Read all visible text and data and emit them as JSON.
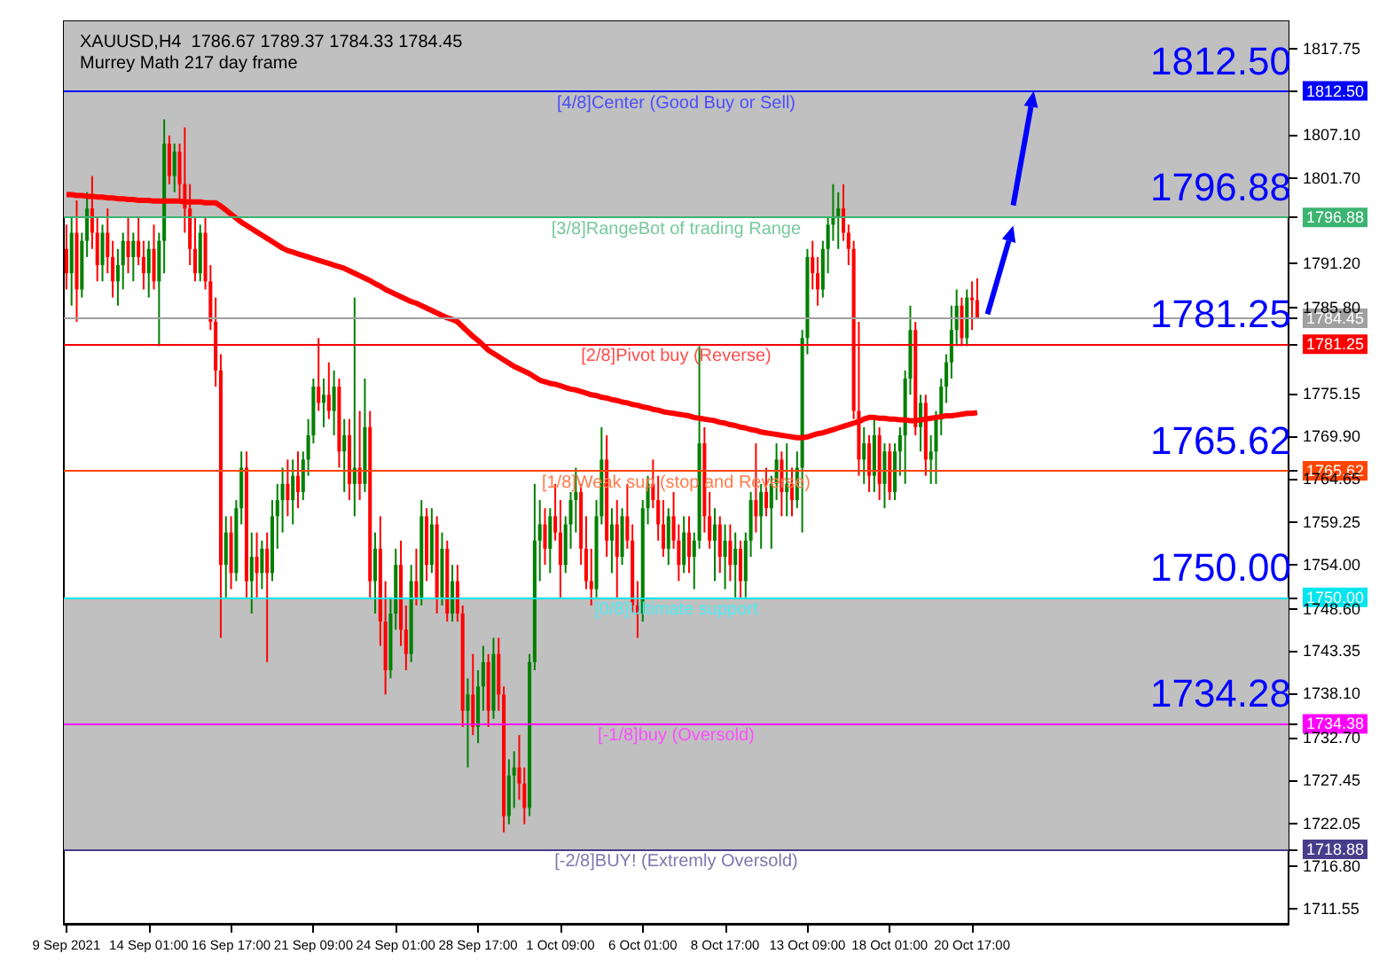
{
  "chart_data": {
    "type": "candlestick",
    "title": "XAUUSD,H4  1786.67 1789.37 1784.33 1784.45",
    "subtitle": "Murrey Math 217 day frame",
    "categories": [
      "9 Sep 2021",
      null,
      null,
      null,
      null,
      null,
      null,
      null,
      null,
      null,
      null,
      null,
      null,
      null,
      null,
      null,
      "14 Sep 01:00",
      null,
      null,
      null,
      null,
      null,
      null,
      null,
      null,
      null,
      null,
      null,
      null,
      null,
      null,
      null,
      "16 Sep 17:00",
      null,
      null,
      null,
      null,
      null,
      null,
      null,
      null,
      null,
      null,
      null,
      null,
      null,
      null,
      null,
      "21 Sep 09:00",
      null,
      null,
      null,
      null,
      null,
      null,
      null,
      null,
      null,
      null,
      null,
      null,
      null,
      null,
      null,
      "24 Sep 01:00",
      null,
      null,
      null,
      null,
      null,
      null,
      null,
      null,
      null,
      null,
      null,
      null,
      null,
      null,
      null,
      "28 Sep 17:00",
      null,
      null,
      null,
      null,
      null,
      null,
      null,
      null,
      null,
      null,
      null,
      null,
      null,
      null,
      null,
      "1 Oct 09:00",
      null,
      null,
      null,
      null,
      null,
      null,
      null,
      null,
      null,
      null,
      null,
      null,
      null,
      null,
      null,
      "6 Oct 01:00",
      null,
      null,
      null,
      null,
      null,
      null,
      null,
      null,
      null,
      null,
      null,
      null,
      null,
      null,
      null,
      "8 Oct 17:00",
      null,
      null,
      null,
      null,
      null,
      null,
      null,
      null,
      null,
      null,
      null,
      null,
      null,
      null,
      null,
      "13 Oct 09:00",
      null,
      null,
      null,
      null,
      null,
      null,
      null,
      null,
      null,
      null,
      null,
      null,
      null,
      null,
      null,
      "18 Oct 01:00",
      null,
      null,
      null,
      null,
      null,
      null,
      null,
      null,
      null,
      null,
      null,
      null,
      null,
      null,
      null,
      "20 Oct 17:00",
      null,
      null,
      null,
      null,
      null,
      null,
      null,
      null,
      null,
      null,
      null,
      null,
      null,
      null,
      null,
      null,
      null,
      null,
      null,
      null,
      null,
      null,
      null,
      null,
      null,
      null,
      null,
      null,
      null,
      null,
      null,
      null,
      null,
      null,
      null,
      null,
      null,
      null,
      null,
      null,
      null,
      null,
      null,
      null,
      null,
      null,
      null,
      null,
      null,
      null,
      null,
      null,
      null,
      null,
      null,
      null,
      null,
      null,
      null,
      null,
      null
    ],
    "ohlc": [
      [
        1793,
        1796,
        1788,
        1790
      ],
      [
        1790,
        1797,
        1786,
        1795
      ],
      [
        1795,
        1799,
        1784,
        1788
      ],
      [
        1788,
        1795,
        1787,
        1794
      ],
      [
        1794,
        1800,
        1792,
        1798
      ],
      [
        1798,
        1802,
        1793,
        1795
      ],
      [
        1795,
        1797,
        1789,
        1791
      ],
      [
        1791,
        1796,
        1789,
        1795
      ],
      [
        1795,
        1798,
        1790,
        1792
      ],
      [
        1792,
        1794,
        1787,
        1789
      ],
      [
        1789,
        1793,
        1786,
        1791
      ],
      [
        1791,
        1795,
        1788,
        1794
      ],
      [
        1794,
        1797,
        1790,
        1792
      ],
      [
        1792,
        1795,
        1789,
        1794
      ],
      [
        1794,
        1797,
        1791,
        1792
      ],
      [
        1792,
        1794,
        1788,
        1790
      ],
      [
        1790,
        1794,
        1787,
        1793
      ],
      [
        1793,
        1796,
        1788,
        1789
      ],
      [
        1789,
        1795,
        1781,
        1794
      ],
      [
        1794,
        1809,
        1790,
        1806
      ],
      [
        1806,
        1807,
        1801,
        1802
      ],
      [
        1802,
        1806,
        1800,
        1805
      ],
      [
        1805,
        1806,
        1799,
        1801
      ],
      [
        1801,
        1808,
        1795,
        1798
      ],
      [
        1798,
        1801,
        1791,
        1793
      ],
      [
        1793,
        1797,
        1789,
        1790
      ],
      [
        1790,
        1796,
        1789,
        1795
      ],
      [
        1795,
        1797,
        1788,
        1789
      ],
      [
        1789,
        1791,
        1783,
        1784
      ],
      [
        1784,
        1787,
        1776,
        1778
      ],
      [
        1778,
        1780,
        1745,
        1754
      ],
      [
        1754,
        1760,
        1750,
        1758
      ],
      [
        1758,
        1760,
        1751,
        1753
      ],
      [
        1753,
        1762,
        1752,
        1761
      ],
      [
        1761,
        1768,
        1759,
        1766
      ],
      [
        1766,
        1768,
        1750,
        1752
      ],
      [
        1752,
        1758,
        1748,
        1755
      ],
      [
        1755,
        1758,
        1750,
        1753
      ],
      [
        1753,
        1757,
        1751,
        1756
      ],
      [
        1756,
        1758,
        1742,
        1753
      ],
      [
        1753,
        1762,
        1752,
        1760
      ],
      [
        1760,
        1764,
        1756,
        1762
      ],
      [
        1762,
        1766,
        1758,
        1764
      ],
      [
        1764,
        1767,
        1760,
        1762
      ],
      [
        1762,
        1767,
        1759,
        1765
      ],
      [
        1765,
        1768,
        1761,
        1763
      ],
      [
        1763,
        1768,
        1762,
        1767
      ],
      [
        1767,
        1772,
        1765,
        1770
      ],
      [
        1770,
        1777,
        1769,
        1776
      ],
      [
        1776,
        1782,
        1773,
        1774
      ],
      [
        1774,
        1777,
        1771,
        1775
      ],
      [
        1775,
        1779,
        1772,
        1773
      ],
      [
        1773,
        1778,
        1770,
        1776
      ],
      [
        1776,
        1777,
        1766,
        1768
      ],
      [
        1768,
        1772,
        1763,
        1770
      ],
      [
        1770,
        1772,
        1762,
        1764
      ],
      [
        1764,
        1787,
        1760,
        1766
      ],
      [
        1766,
        1773,
        1762,
        1764
      ],
      [
        1764,
        1777,
        1763,
        1771
      ],
      [
        1771,
        1773,
        1750,
        1752
      ],
      [
        1752,
        1758,
        1748,
        1756
      ],
      [
        1756,
        1760,
        1744,
        1747
      ],
      [
        1747,
        1752,
        1738,
        1741
      ],
      [
        1741,
        1750,
        1740,
        1748
      ],
      [
        1748,
        1756,
        1746,
        1754
      ],
      [
        1754,
        1757,
        1744,
        1746
      ],
      [
        1746,
        1749,
        1741,
        1743
      ],
      [
        1743,
        1754,
        1742,
        1752
      ],
      [
        1752,
        1756,
        1749,
        1750
      ],
      [
        1750,
        1762,
        1749,
        1760
      ],
      [
        1760,
        1761,
        1752,
        1754
      ],
      [
        1754,
        1761,
        1753,
        1759
      ],
      [
        1759,
        1760,
        1748,
        1750
      ],
      [
        1750,
        1758,
        1749,
        1756
      ],
      [
        1756,
        1757,
        1747,
        1748
      ],
      [
        1748,
        1754,
        1747,
        1752
      ],
      [
        1752,
        1754,
        1747,
        1748
      ],
      [
        1748,
        1749,
        1734,
        1736
      ],
      [
        1736,
        1740,
        1729,
        1738
      ],
      [
        1738,
        1743,
        1733,
        1734
      ],
      [
        1734,
        1741,
        1732,
        1739
      ],
      [
        1739,
        1744,
        1736,
        1742
      ],
      [
        1742,
        1743,
        1734,
        1736
      ],
      [
        1736,
        1745,
        1735,
        1743
      ],
      [
        1743,
        1745,
        1736,
        1738
      ],
      [
        1738,
        1739,
        1721,
        1723
      ],
      [
        1723,
        1730,
        1722,
        1728
      ],
      [
        1728,
        1731,
        1724,
        1729
      ],
      [
        1729,
        1733,
        1725,
        1727
      ],
      [
        1727,
        1729,
        1722,
        1724
      ],
      [
        1724,
        1743,
        1723,
        1742
      ],
      [
        1742,
        1764,
        1741,
        1757
      ],
      [
        1757,
        1762,
        1752,
        1759
      ],
      [
        1759,
        1761,
        1754,
        1756
      ],
      [
        1756,
        1761,
        1753,
        1760
      ],
      [
        1760,
        1764,
        1757,
        1758
      ],
      [
        1758,
        1762,
        1750,
        1754
      ],
      [
        1754,
        1760,
        1753,
        1759
      ],
      [
        1759,
        1763,
        1756,
        1762
      ],
      [
        1762,
        1766,
        1758,
        1763
      ],
      [
        1763,
        1764,
        1754,
        1756
      ],
      [
        1756,
        1760,
        1751,
        1752
      ],
      [
        1752,
        1756,
        1749,
        1751
      ],
      [
        1751,
        1762,
        1750,
        1760
      ],
      [
        1760,
        1771,
        1759,
        1767
      ],
      [
        1767,
        1770,
        1755,
        1757
      ],
      [
        1757,
        1761,
        1753,
        1759
      ],
      [
        1759,
        1762,
        1750,
        1755
      ],
      [
        1755,
        1761,
        1754,
        1760
      ],
      [
        1760,
        1764,
        1756,
        1757
      ],
      [
        1757,
        1759,
        1748,
        1749
      ],
      [
        1749,
        1752,
        1745,
        1748
      ],
      [
        1748,
        1762,
        1747,
        1761
      ],
      [
        1761,
        1765,
        1759,
        1764
      ],
      [
        1764,
        1767,
        1761,
        1762
      ],
      [
        1762,
        1765,
        1757,
        1759
      ],
      [
        1759,
        1762,
        1755,
        1756
      ],
      [
        1756,
        1761,
        1754,
        1760
      ],
      [
        1760,
        1763,
        1756,
        1757
      ],
      [
        1757,
        1759,
        1752,
        1754
      ],
      [
        1754,
        1760,
        1753,
        1758
      ],
      [
        1758,
        1760,
        1753,
        1755
      ],
      [
        1755,
        1758,
        1751,
        1757
      ],
      [
        1757,
        1781,
        1756,
        1769
      ],
      [
        1769,
        1771,
        1758,
        1760
      ],
      [
        1760,
        1763,
        1756,
        1757
      ],
      [
        1757,
        1761,
        1752,
        1759
      ],
      [
        1759,
        1760,
        1753,
        1755
      ],
      [
        1755,
        1759,
        1751,
        1757
      ],
      [
        1757,
        1759,
        1752,
        1754
      ],
      [
        1754,
        1758,
        1750,
        1756
      ],
      [
        1756,
        1757,
        1750,
        1752
      ],
      [
        1752,
        1758,
        1750,
        1757
      ],
      [
        1757,
        1763,
        1755,
        1762
      ],
      [
        1762,
        1769,
        1758,
        1760
      ],
      [
        1760,
        1764,
        1756,
        1763
      ],
      [
        1763,
        1766,
        1760,
        1761
      ],
      [
        1761,
        1765,
        1756,
        1764
      ],
      [
        1764,
        1769,
        1762,
        1767
      ],
      [
        1767,
        1768,
        1760,
        1763
      ],
      [
        1763,
        1769,
        1760,
        1764
      ],
      [
        1764,
        1766,
        1760,
        1762
      ],
      [
        1762,
        1768,
        1761,
        1766
      ],
      [
        1766,
        1783,
        1758,
        1782
      ],
      [
        1782,
        1793,
        1780,
        1792
      ],
      [
        1792,
        1794,
        1788,
        1790
      ],
      [
        1790,
        1792,
        1786,
        1788
      ],
      [
        1788,
        1794,
        1787,
        1793
      ],
      [
        1793,
        1797,
        1790,
        1796
      ],
      [
        1796,
        1801,
        1794,
        1797
      ],
      [
        1797,
        1800,
        1793,
        1798
      ],
      [
        1798,
        1801,
        1794,
        1795
      ],
      [
        1795,
        1796,
        1791,
        1793
      ],
      [
        1793,
        1794,
        1772,
        1773
      ],
      [
        1773,
        1784,
        1765,
        1767
      ],
      [
        1767,
        1771,
        1764,
        1769
      ],
      [
        1769,
        1770,
        1763,
        1765
      ],
      [
        1765,
        1772,
        1763,
        1770
      ],
      [
        1770,
        1771,
        1762,
        1764
      ],
      [
        1764,
        1769,
        1761,
        1768
      ],
      [
        1768,
        1769,
        1762,
        1763
      ],
      [
        1763,
        1769,
        1762,
        1768
      ],
      [
        1768,
        1771,
        1765,
        1770
      ],
      [
        1770,
        1778,
        1764,
        1777
      ],
      [
        1777,
        1786,
        1775,
        1783
      ],
      [
        1783,
        1784,
        1770,
        1771
      ],
      [
        1771,
        1775,
        1768,
        1774
      ],
      [
        1774,
        1775,
        1765,
        1767
      ],
      [
        1767,
        1770,
        1764,
        1768
      ],
      [
        1768,
        1773,
        1764,
        1772
      ],
      [
        1772,
        1777,
        1770,
        1776
      ],
      [
        1776,
        1780,
        1774,
        1779
      ],
      [
        1779,
        1786,
        1777,
        1783
      ],
      [
        1783,
        1788,
        1781,
        1786
      ],
      [
        1786,
        1787,
        1781,
        1782
      ],
      [
        1782,
        1788,
        1781,
        1787
      ],
      [
        1787,
        1789,
        1783,
        1786.67
      ],
      [
        1786.67,
        1789.37,
        1784.33,
        1784.45
      ],
      null,
      null,
      null,
      null,
      null,
      null,
      null,
      null,
      null,
      null,
      null,
      null,
      null,
      null,
      null,
      null,
      null,
      null,
      null,
      null,
      null,
      null,
      null,
      null,
      null,
      null,
      null,
      null,
      null,
      null,
      null,
      null,
      null,
      null,
      null,
      null,
      null,
      null,
      null,
      null,
      null,
      null,
      null,
      null,
      null,
      null,
      null,
      null,
      null,
      null,
      null,
      null,
      null,
      null,
      null,
      null,
      null,
      null,
      null,
      null
    ],
    "series": [
      {
        "type": "line",
        "color": "#ff0000",
        "values": [
          1799.7,
          1799.7,
          1799.6,
          1799.6,
          1799.5,
          1799.5,
          1799.4,
          1799.4,
          1799.3,
          1799.3,
          1799.2,
          1799.2,
          1799.1,
          1799.1,
          1799.0,
          1799.0,
          1799.0,
          1798.9,
          1798.9,
          1798.9,
          1798.9,
          1798.9,
          1798.9,
          1798.8,
          1798.8,
          1798.8,
          1798.8,
          1798.7,
          1798.7,
          1798.7,
          1798.3,
          1797.8,
          1797.3,
          1796.8,
          1796.3,
          1795.9,
          1795.5,
          1795.1,
          1794.7,
          1794.3,
          1793.9,
          1793.5,
          1793.1,
          1792.8,
          1792.6,
          1792.4,
          1792.2,
          1792.0,
          1791.8,
          1791.6,
          1791.4,
          1791.2,
          1791.0,
          1790.8,
          1790.6,
          1790.3,
          1790.0,
          1789.7,
          1789.4,
          1789.1,
          1788.7,
          1788.4,
          1788.0,
          1787.7,
          1787.4,
          1787.1,
          1786.8,
          1786.5,
          1786.3,
          1786.0,
          1785.7,
          1785.4,
          1785.1,
          1784.8,
          1784.5,
          1784.3,
          1784.0,
          1783.4,
          1782.8,
          1782.2,
          1781.7,
          1781.1,
          1780.5,
          1780.1,
          1779.7,
          1779.3,
          1778.9,
          1778.5,
          1778.2,
          1777.9,
          1777.6,
          1777.2,
          1776.8,
          1776.6,
          1776.4,
          1776.3,
          1776.1,
          1775.9,
          1775.7,
          1775.6,
          1775.4,
          1775.2,
          1775.0,
          1774.9,
          1774.7,
          1774.6,
          1774.4,
          1774.3,
          1774.1,
          1774.0,
          1773.8,
          1773.7,
          1773.5,
          1773.4,
          1773.2,
          1773.1,
          1772.9,
          1772.8,
          1772.7,
          1772.6,
          1772.5,
          1772.4,
          1772.2,
          1772.1,
          1772.0,
          1771.9,
          1771.8,
          1771.6,
          1771.5,
          1771.3,
          1771.2,
          1771.0,
          1770.9,
          1770.7,
          1770.6,
          1770.4,
          1770.3,
          1770.2,
          1770.1,
          1770.0,
          1769.9,
          1769.8,
          1769.7,
          1769.7,
          1769.8,
          1770.0,
          1770.2,
          1770.3,
          1770.5,
          1770.7,
          1770.9,
          1771.1,
          1771.3,
          1771.5,
          1771.7,
          1772.0,
          1772.2,
          1772.2,
          1772.1,
          1772.1,
          1772.0,
          1772.0,
          1771.9,
          1771.9,
          1771.8,
          1771.8,
          1771.9,
          1772.0,
          1772.1,
          1772.2,
          1772.3,
          1772.4,
          1772.4,
          1772.5,
          1772.6,
          1772.7,
          1772.7,
          1772.8,
          null,
          null,
          null,
          null,
          null,
          null,
          null,
          null,
          null,
          null,
          null,
          null,
          null,
          null,
          null,
          null,
          null,
          null,
          null,
          null,
          null,
          null,
          null,
          null,
          null,
          null,
          null,
          null,
          null,
          null,
          null,
          null,
          null,
          null,
          null,
          null,
          null,
          null,
          null,
          null,
          null,
          null,
          null,
          null,
          null,
          null,
          null,
          null,
          null,
          null,
          null,
          null,
          null,
          null,
          null,
          null,
          null,
          null,
          null,
          null
        ]
      }
    ],
    "marker": "none",
    "ylim": [
      1709.7,
      1821.1
    ],
    "yticks": [
      1817.75,
      {
        "value": 1812.5,
        "label": "1812.50"
      },
      {
        "value": 1796.88,
        "label": "1796.88"
      },
      {
        "value": 1784.45,
        "label": "1784.45"
      },
      {
        "value": 1781.25,
        "label": "1781.25"
      },
      {
        "value": 1765.62,
        "label": "1765.62"
      },
      {
        "value": 1750,
        "label": "1750.00"
      },
      {
        "value": 1734.38,
        "label": "1734.38"
      },
      {
        "value": 1718.88,
        "label": "1718.88"
      },
      {
        "value": 1807.1,
        "label": "1807.10"
      },
      {
        "value": 1801.7,
        "label": "1801.70"
      },
      {
        "value": 1791.2,
        "label": "1791.20"
      },
      {
        "value": 1785.8,
        "label": "1785.80"
      },
      1775.15,
      {
        "value": 1769.9,
        "label": "1769.90"
      },
      1764.65,
      1759.25,
      {
        "value": 1754,
        "label": "1754.00"
      },
      {
        "value": 1748.6,
        "label": "1748.60"
      },
      1743.35,
      {
        "value": 1738.1,
        "label": "1738.10"
      },
      {
        "value": 1732.7,
        "label": "1732.70"
      },
      1727.45,
      1722.05,
      {
        "value": 1716.8,
        "label": "1716.80"
      },
      1711.55
    ],
    "ref_lines": [
      {
        "axis": "y",
        "value": 1812.5,
        "label": "[4/8]Center (Good Buy or Sell)",
        "color": "#0000ff"
      },
      {
        "axis": "y",
        "value": 1796.88,
        "label": "[3/8]RangeBot of trading Range",
        "color": "#3cb371"
      },
      {
        "axis": "y",
        "value": 1784.45,
        "label": null,
        "color": "#a0a0a0"
      },
      {
        "axis": "y",
        "value": 1781.25,
        "label": "[2/8]Pivot buy (Reverse)",
        "color": "#ff0000"
      },
      {
        "axis": "y",
        "value": 1765.62,
        "label": "[1/8]Weak sup (stop and Reverse)",
        "color": "#ff4500"
      },
      {
        "axis": "y",
        "value": 1750,
        "label": "[0/8]Ultimate support",
        "color": "#00e5ee"
      },
      {
        "axis": "y",
        "value": 1734.38,
        "label": "[-1/8]buy (Oversold)",
        "color": "#ff00ff"
      },
      {
        "axis": "y",
        "value": 1718.88,
        "label": "[-2/8]BUY! (Extremly Oversold)",
        "color": "#483d8b"
      }
    ],
    "bands": [
      {
        "axis": "y",
        "from": 1796.88,
        "to": 1821.1,
        "color": "#c0c0c0"
      },
      {
        "axis": "y",
        "from": 1718.88,
        "to": 1750,
        "color": "#c0c0c0"
      }
    ],
    "annotations": [
      {
        "text": "1812.50",
        "y": 1812.5
      },
      {
        "text": "1796.88",
        "y": 1796.88
      },
      {
        "text": "1781.25",
        "y": 1781.25
      },
      {
        "text": "1765.62",
        "y": 1765.62
      },
      {
        "text": "1750.00",
        "y": 1750
      },
      {
        "text": "1734.28",
        "y": 1734.38
      }
    ],
    "grid": false
  }
}
